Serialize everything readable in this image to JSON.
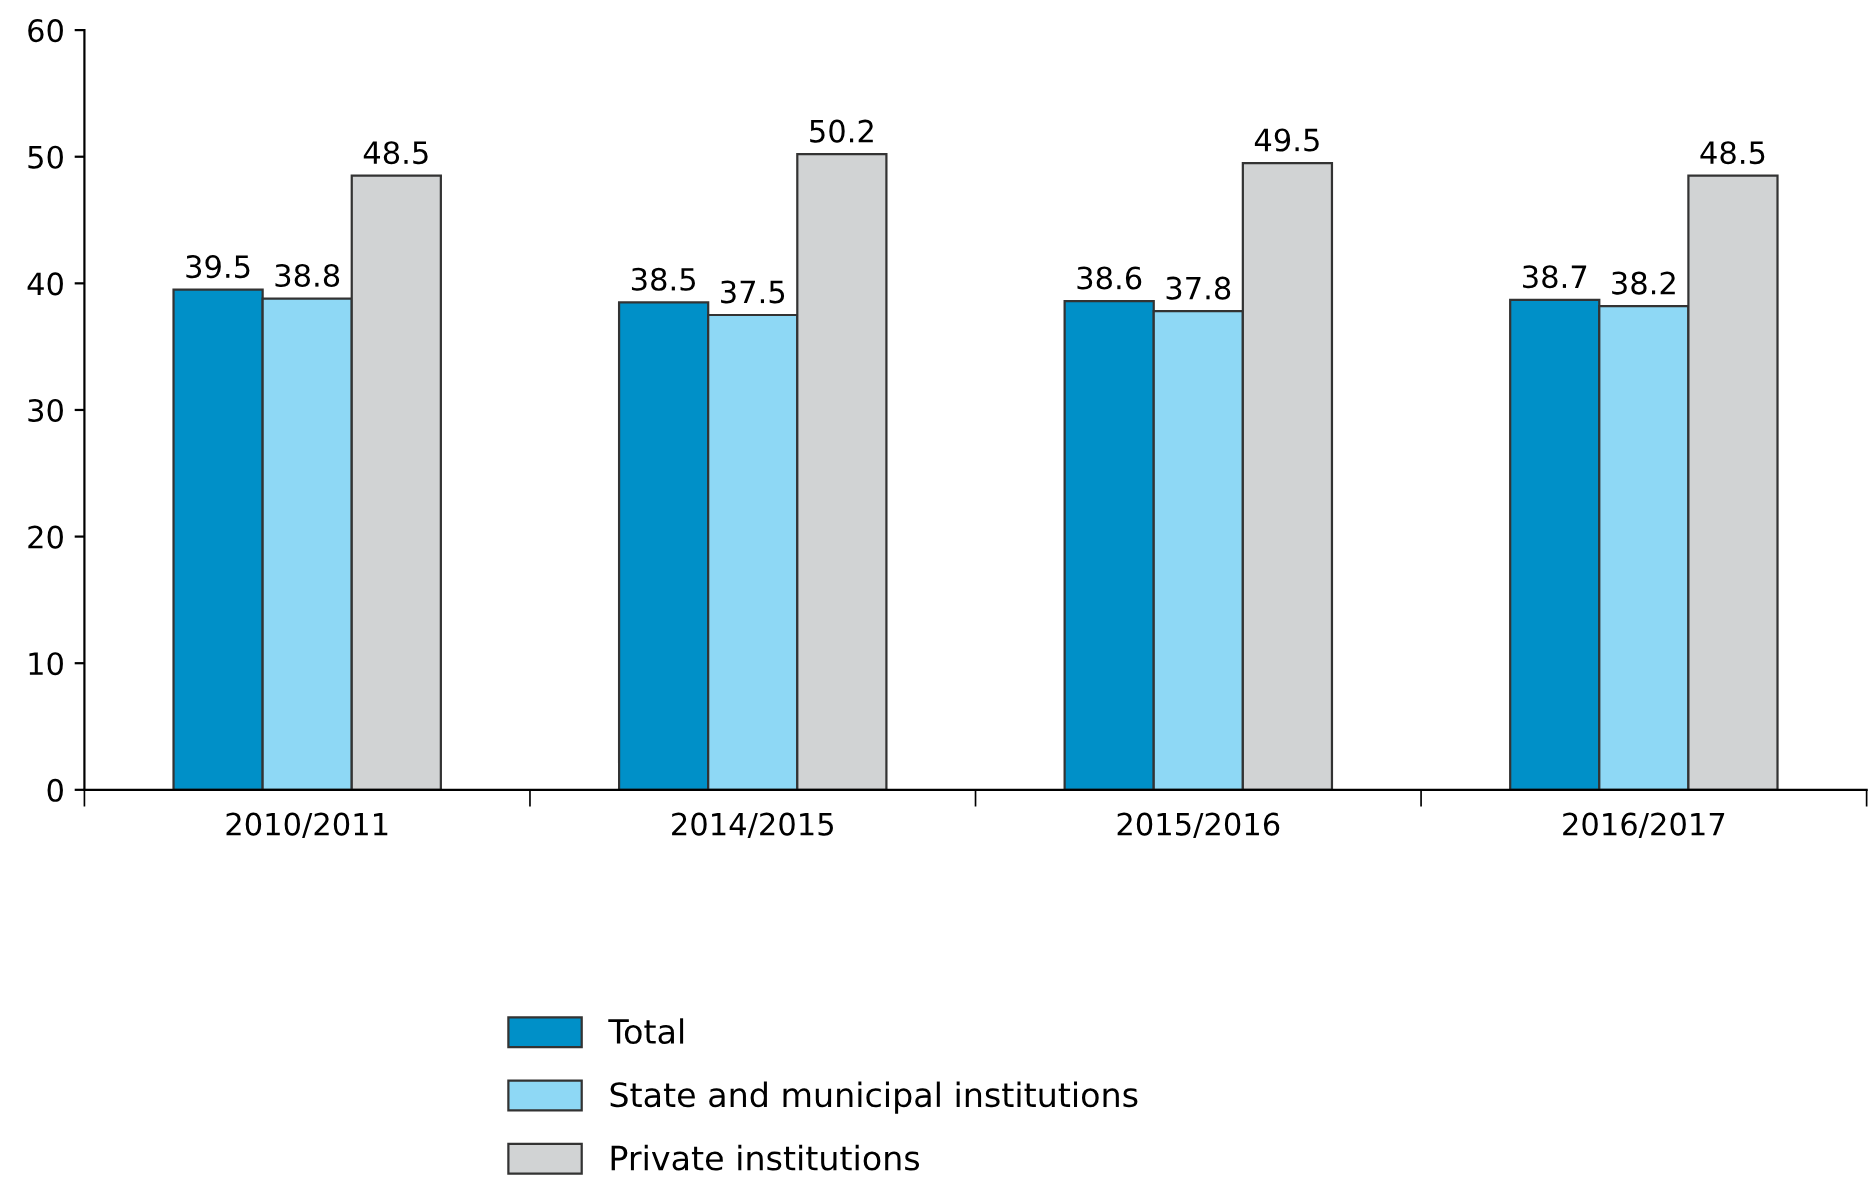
{
  "chart_data": {
    "type": "bar",
    "categories": [
      "2010/2011",
      "2014/2015",
      "2015/2016",
      "2016/2017"
    ],
    "series": [
      {
        "name": "Total",
        "color": "#0090c8",
        "values": [
          39.5,
          38.5,
          38.6,
          38.7
        ]
      },
      {
        "name": "State and municipal institutions",
        "color": "#8ed8f5",
        "values": [
          38.8,
          37.5,
          37.8,
          38.2
        ]
      },
      {
        "name": "Private institutions",
        "color": "#d1d3d4",
        "values": [
          48.5,
          50.2,
          49.5,
          48.5
        ]
      }
    ],
    "ylim": [
      0,
      60
    ],
    "yticks": [
      0,
      10,
      20,
      30,
      40,
      50,
      60
    ],
    "data_labels": true,
    "grid": false,
    "legend": "bottom"
  }
}
